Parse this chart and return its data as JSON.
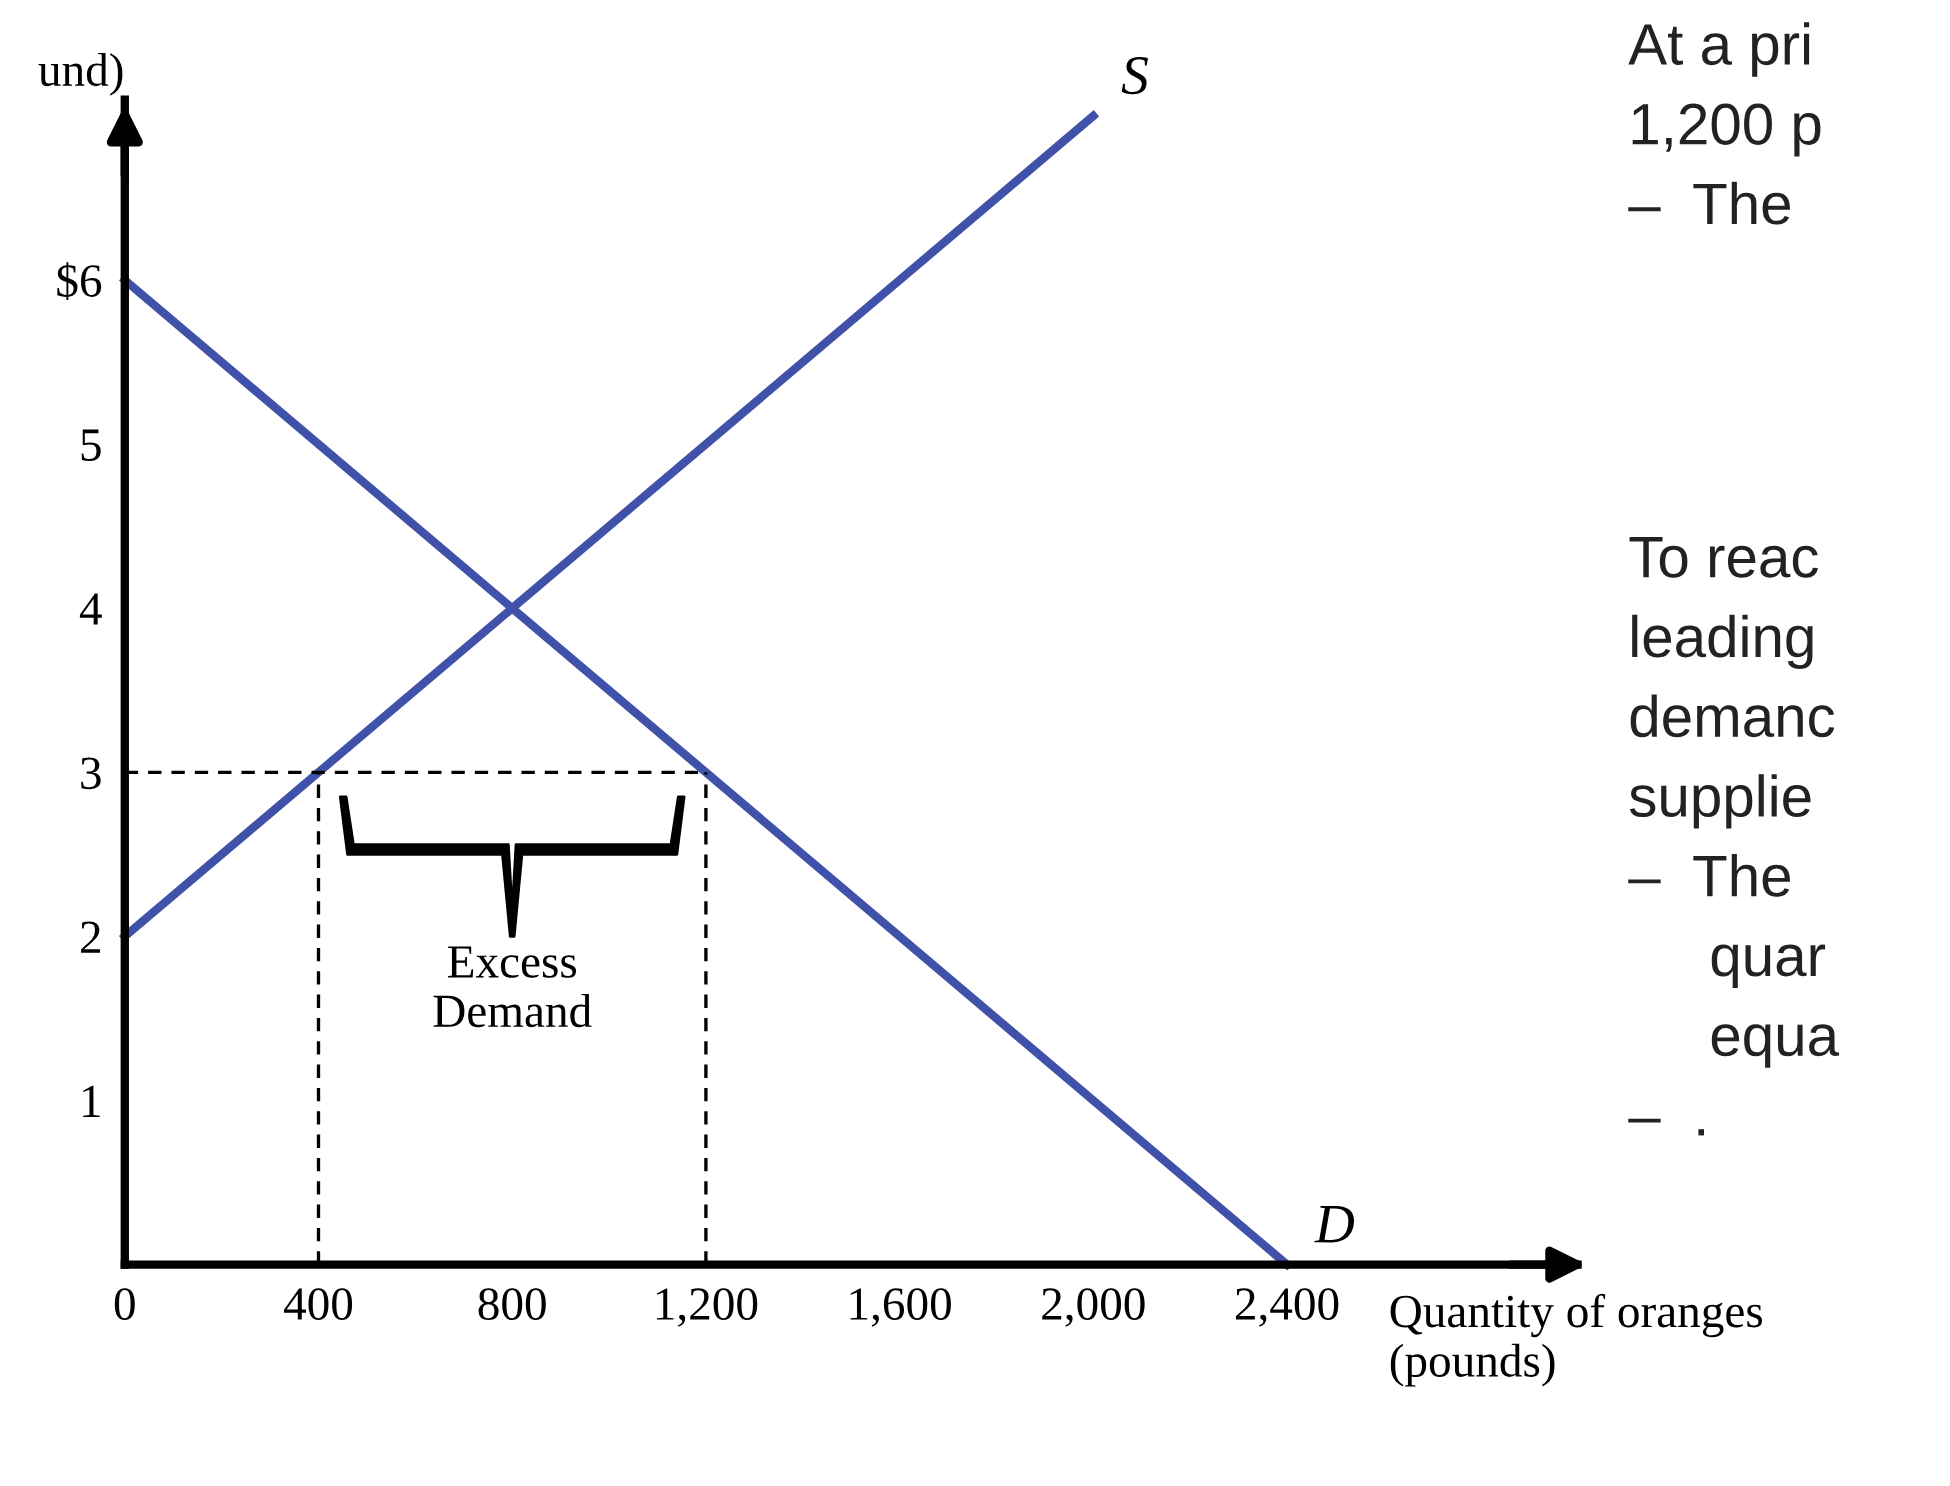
{
  "chart_data": {
    "type": "line",
    "ylabel": "und)",
    "xlabel": "Quantity of oranges\n(pounds)",
    "xlim": [
      0,
      3000
    ],
    "ylim": [
      0,
      7.1
    ],
    "xticks": [
      0,
      400,
      800,
      {
        "value": 1200,
        "label": "1,200"
      },
      {
        "value": 1600,
        "label": "1,600"
      },
      {
        "value": 2000,
        "label": "2,000"
      },
      {
        "value": 2400,
        "label": "2,400"
      }
    ],
    "yticks": [
      1,
      2,
      3,
      4,
      5,
      {
        "value": 6,
        "label": "$6"
      }
    ],
    "series": [
      {
        "color": "#3f51a8",
        "x": [
          0,
          2000
        ],
        "values": [
          2,
          7
        ]
      },
      {
        "color": "#3f51a8",
        "x": [
          0,
          2400
        ],
        "values": [
          6,
          0
        ]
      },
      {
        "color": "#000000",
        "line_style": "dashed",
        "x": [
          0,
          1200
        ],
        "values": [
          3,
          3
        ]
      },
      {
        "color": "#000000",
        "line_style": "dashed",
        "x": [
          400,
          400
        ],
        "values": [
          0,
          3
        ]
      },
      {
        "color": "#000000",
        "line_style": "dashed",
        "x": [
          1200,
          1200
        ],
        "values": [
          0,
          3
        ]
      }
    ],
    "annotations": [
      {
        "text": "S",
        "x": 2000,
        "y": 7
      },
      {
        "text": "D",
        "x": 2400,
        "y": 0
      },
      "Excess\nDemand",
      "At a pri\n1,200 p\n–  The",
      "To reac\nleading\ndemanc\nsupplie\n–  The\n     quar\n     equa\n–  ."
    ]
  }
}
